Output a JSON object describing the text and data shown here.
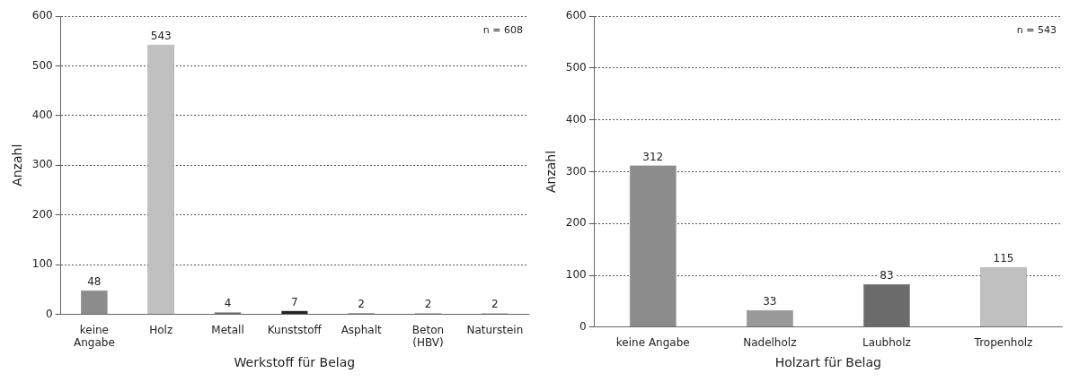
{
  "chart_data": [
    {
      "type": "bar",
      "xlabel": "Werkstoff für Belag",
      "ylabel": "Anzahl",
      "categories": [
        "keine Angabe",
        "Holz",
        "Metall",
        "Kunststoff",
        "Asphalt",
        "Beton (HBV)",
        "Naturstein"
      ],
      "values": [
        48,
        543,
        4,
        7,
        2,
        2,
        2
      ],
      "colors": [
        "#8c8c8c",
        "#c0c0c0",
        "#6a6a6a",
        "#262626",
        "#404040",
        "#808080",
        "#a0a0a0"
      ],
      "ylim": [
        0,
        600
      ],
      "yticks": [
        0,
        100,
        200,
        300,
        400,
        500,
        600
      ],
      "grid": "y",
      "data_labels": true,
      "annotations": [
        "n = 608"
      ]
    },
    {
      "type": "bar",
      "xlabel": "Holzart für Belag",
      "ylabel": "Anzahl",
      "categories": [
        "keine Angabe",
        "Nadelholz",
        "Laubholz",
        "Tropenholz"
      ],
      "values": [
        312,
        33,
        83,
        115
      ],
      "colors": [
        "#8c8c8c",
        "#999999",
        "#6b6b6b",
        "#c0c0c0"
      ],
      "ylim": [
        0,
        600
      ],
      "yticks": [
        0,
        100,
        200,
        300,
        400,
        500,
        600
      ],
      "grid": "y",
      "data_labels": true,
      "annotations": [
        "n = 543"
      ]
    }
  ]
}
